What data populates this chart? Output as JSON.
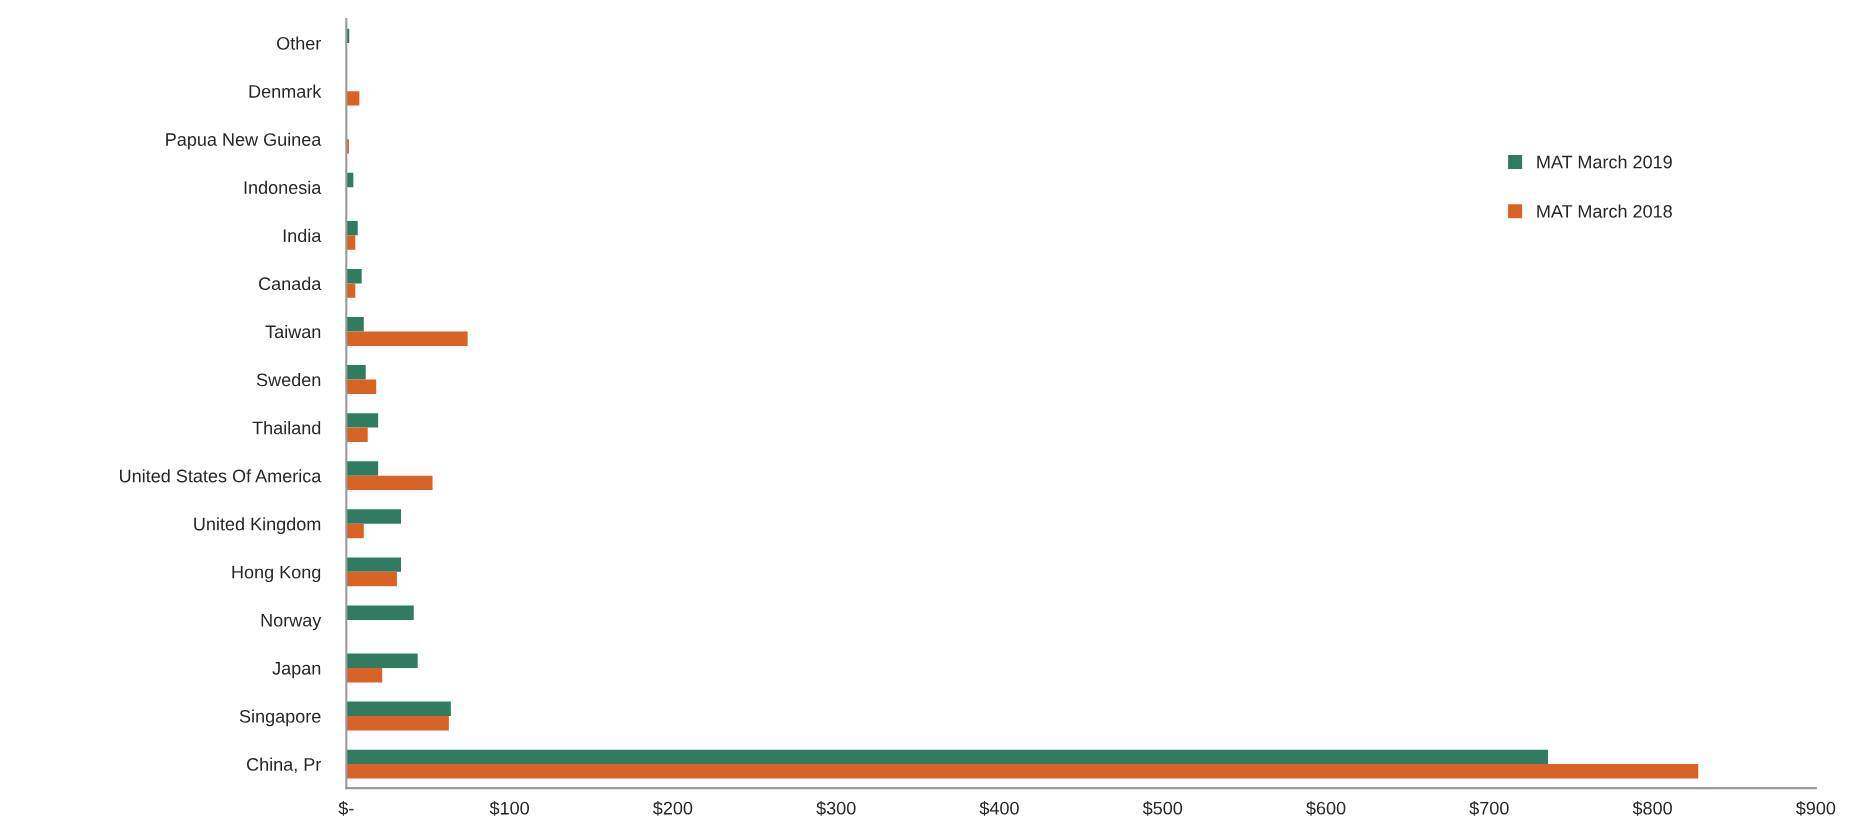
{
  "chart_data": {
    "type": "bar",
    "orientation": "horizontal",
    "categories": [
      "Other",
      "Denmark",
      "Papua New Guinea",
      "Indonesia",
      "India",
      "Canada",
      "Taiwan",
      "Sweden",
      "Thailand",
      "United States Of America",
      "United Kingdom",
      "Hong Kong",
      "Norway",
      "Japan",
      "Singapore",
      "China, Pr"
    ],
    "series": [
      {
        "name": "MAT March 2019",
        "color": "#317c61",
        "values": [
          1.8,
          null,
          null,
          4.3,
          7,
          9.4,
          10.7,
          11.9,
          19.5,
          19.5,
          33.5,
          33.5,
          41.3,
          43.7,
          64,
          736
        ]
      },
      {
        "name": "MAT March 2018",
        "color": "#d86327",
        "values": [
          null,
          8,
          1.6,
          null,
          5.5,
          5.5,
          74.3,
          18.3,
          13.1,
          52.8,
          10.7,
          31,
          null,
          22,
          62.8,
          828
        ]
      }
    ],
    "xlim": [
      0,
      900
    ],
    "xticks": [
      {
        "value": 0,
        "label": "$-"
      },
      {
        "value": 100,
        "label": "$100"
      },
      {
        "value": 200,
        "label": "$200"
      },
      {
        "value": 300,
        "label": "$300"
      },
      {
        "value": 400,
        "label": "$400"
      },
      {
        "value": 500,
        "label": "$500"
      },
      {
        "value": 600,
        "label": "$600"
      },
      {
        "value": 700,
        "label": "$700"
      },
      {
        "value": 800,
        "label": "$800"
      },
      {
        "value": 900,
        "label": "$900"
      }
    ],
    "grid": false,
    "legend": "right"
  }
}
